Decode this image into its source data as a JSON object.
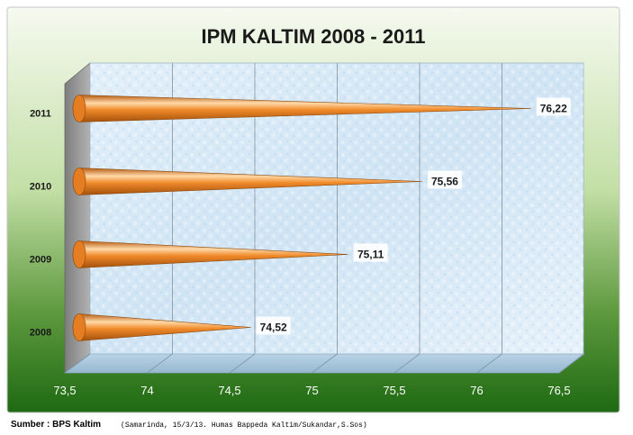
{
  "chart_data": {
    "type": "bar",
    "orientation": "horizontal",
    "title": "IPM KALTIM 2008 - 2011",
    "categories": [
      "2008",
      "2009",
      "2010",
      "2011"
    ],
    "values": [
      74.52,
      75.11,
      75.56,
      76.22
    ],
    "value_labels": [
      "74,52",
      "75,11",
      "75,56",
      "76,22"
    ],
    "xlim": [
      73.5,
      76.5
    ],
    "x_ticks": [
      73.5,
      74,
      74.5,
      75,
      75.5,
      76,
      76.5
    ],
    "x_tick_labels": [
      "73,5",
      "74",
      "74,5",
      "75",
      "75,5",
      "76",
      "76,5"
    ],
    "grid": true,
    "legend": "none",
    "bar_shape": "cone",
    "colors": {
      "bar": "#f08a2a",
      "bar_highlight": "#ffd9a8",
      "bar_shadow": "#b45a10",
      "plot_bg": "#d4e7f5",
      "side_wall": "#9a9a9a",
      "outer_top": "#f4f9ee",
      "outer_bottom": "#1e6a12",
      "tick_text": "#ffffff"
    }
  },
  "footer": {
    "source": "Sumber : BPS Kaltim",
    "note": "(Samarinda, 15/3/13. Humas Bappeda Kaltim/Sukandar,S.Sos)"
  }
}
